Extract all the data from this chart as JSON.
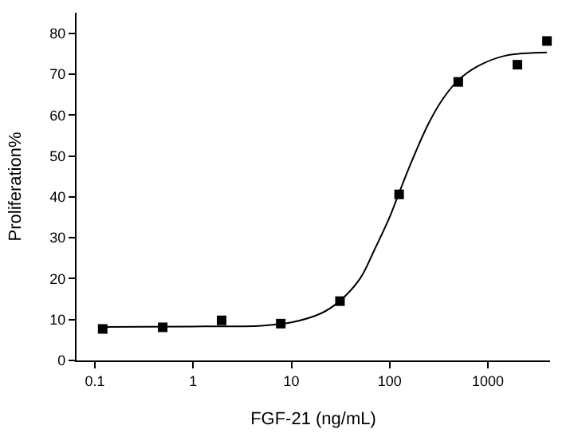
{
  "chart_data": {
    "type": "scatter",
    "xlabel": "FGF-21 (ng/mL)",
    "ylabel": "Proliferation%",
    "log": "x",
    "marker": "square",
    "xlim": [
      0.065,
      4300
    ],
    "xticks": [
      0.1,
      1,
      10,
      100,
      1000
    ],
    "ylim": [
      0,
      85
    ],
    "yticks": [
      0,
      10,
      20,
      30,
      40,
      50,
      60,
      70,
      80
    ],
    "series": [
      {
        "color": "#000000",
        "x": [
          0.12,
          0.49,
          1.95,
          7.8,
          31.25,
          125,
          500,
          2000,
          4000
        ],
        "values": [
          7.7,
          8.1,
          9.8,
          9.0,
          14.5,
          40.6,
          68.1,
          72.3,
          78.1
        ]
      },
      {
        "type": "line",
        "color": "#000000",
        "marker": "none",
        "line_style": "solid",
        "x": [
          0.12,
          1,
          5,
          10,
          20,
          31,
          50,
          70,
          100,
          125,
          170,
          250,
          350,
          500,
          800,
          1500,
          4000
        ],
        "values": [
          8.2,
          8.3,
          8.5,
          9.3,
          11.5,
          14.5,
          20,
          27,
          35,
          41,
          49,
          58,
          64,
          68.5,
          72,
          74.5,
          75.3
        ]
      }
    ]
  }
}
